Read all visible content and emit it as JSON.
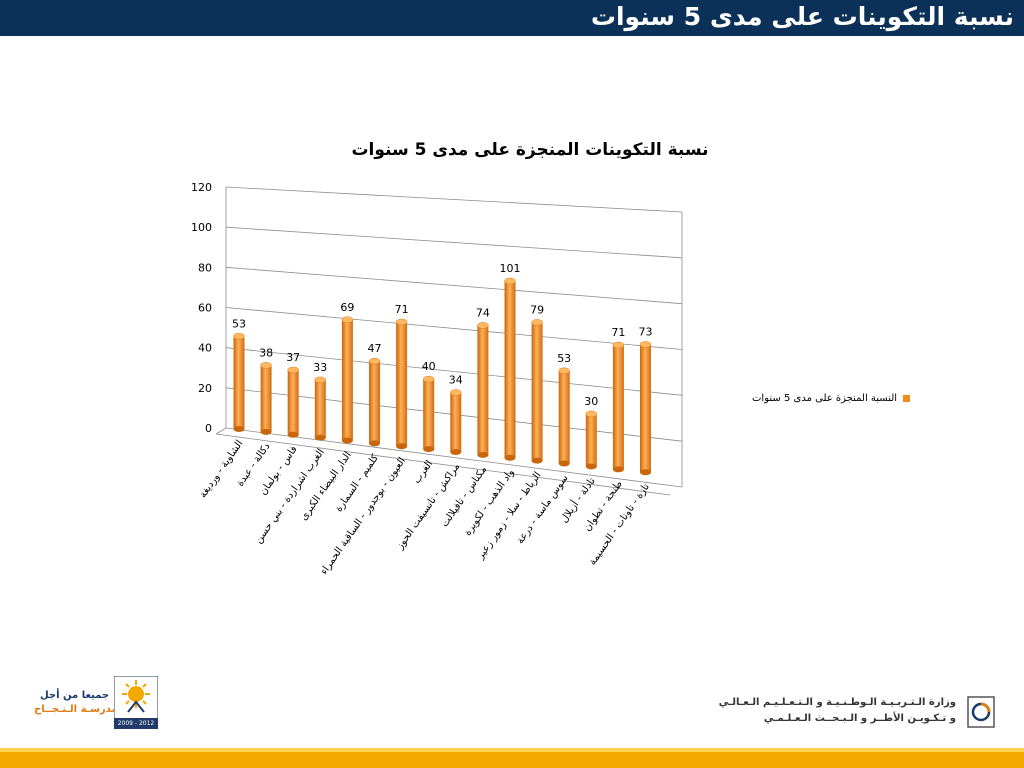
{
  "slide": {
    "banner_title": "نسبة التكوينات على مدى 5 سنوات"
  },
  "footer": {
    "slogan_line1": "جميعا من أجل",
    "slogan_line2": "مدرسـة الـنـجــاح",
    "years": "2009 - 2012",
    "ministry_line1": "وزارة الـتـربـيـة الـوطـنـيـة و الـتـعـلـيـم الـعـالـي",
    "ministry_line2": "و تـكـويـن الأطــر و الـبـحــث الـعـلـمـي"
  },
  "colors": {
    "banner": "#0c3158",
    "bar": "#f28a1c",
    "footer_bar": "#f2a900"
  },
  "chart_data": {
    "type": "bar",
    "title": "نسبة التكوينات المنجزة على مدى 5 سنوات",
    "categories": [
      "الشاوية - ورديغة",
      "دكالة - عبدة",
      "فاس - بولمان",
      "الغرب اشراردة - بني حسن",
      "الدار البيضاء الكبرى",
      "كلميم - السمارة",
      "العيون - بوجدور - الساقية الحمراء",
      "الغرب",
      "مراكش - تانسيفت الحوز",
      "مكناس - تافيلالت",
      "واد الذهب - لكويرة",
      "الرباط - سلا - زمور زعير",
      "سوس ماسة - درعة",
      "تادلة - أزيلال",
      "طنجة - تطوان",
      "تازة - تاونات - الحسيمة"
    ],
    "series": [
      {
        "name": "النسبة المنجزة على مدى 5 سنوات",
        "values": [
          53,
          38,
          37,
          33,
          69,
          47,
          71,
          40,
          34,
          74,
          101,
          79,
          53,
          30,
          71,
          73
        ]
      }
    ],
    "y_ticks": [
      "0",
      "20",
      "40",
      "60",
      "80",
      "100",
      "120"
    ],
    "ylim": [
      0,
      120
    ],
    "grid": true,
    "legend_position": "right",
    "data_labels": true,
    "style": "3d-cylinder"
  }
}
